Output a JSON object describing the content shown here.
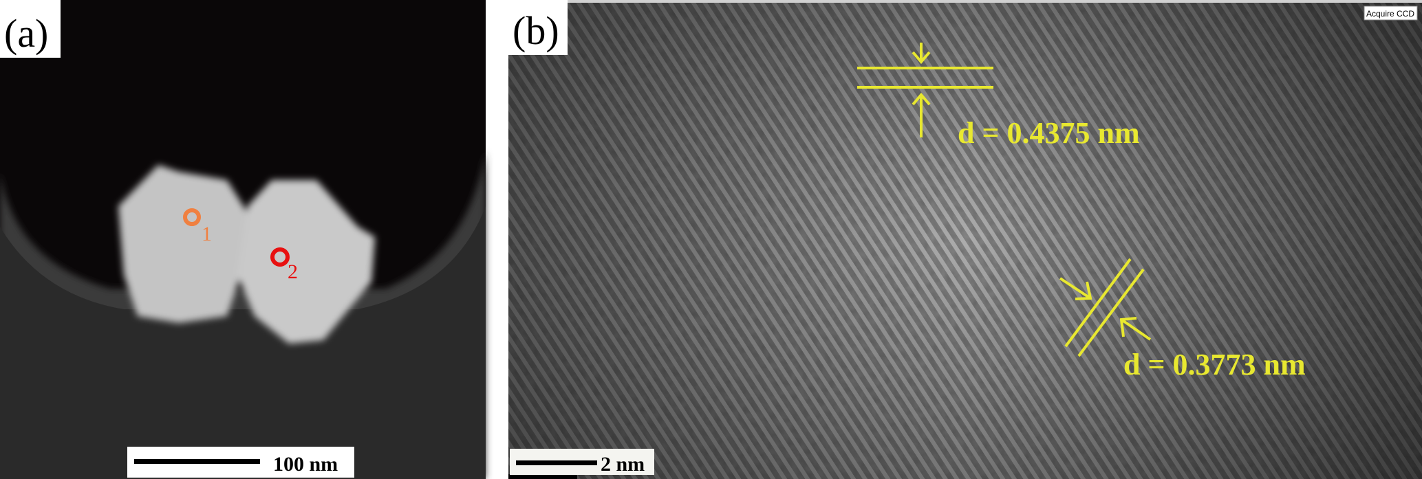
{
  "panel_a": {
    "label": "(a)",
    "markers": [
      {
        "label": "1",
        "color": "#f08040"
      },
      {
        "label": "2",
        "color": "#e81010"
      }
    ],
    "scale_bar": "100 nm"
  },
  "panel_b": {
    "label": "(b)",
    "overlay_button": "Acquire CCD",
    "annotations": [
      {
        "text": "d = 0.4375 nm"
      },
      {
        "text": "d = 0.3773 nm"
      }
    ],
    "annotation_color": "#e8e830",
    "scale_bar": "2 nm"
  }
}
